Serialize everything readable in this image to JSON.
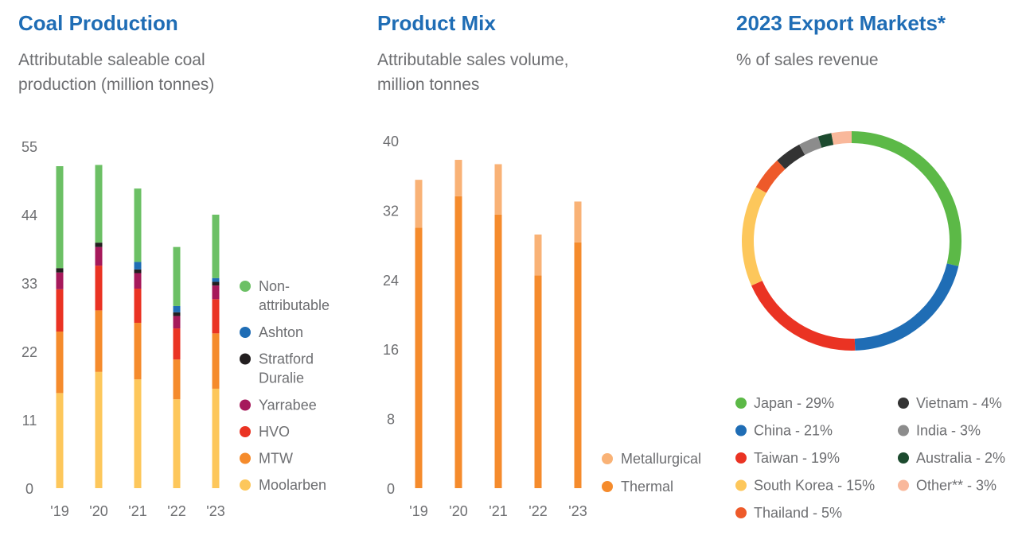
{
  "colors": {
    "title": "#1f6db5",
    "text": "#6d6e71"
  },
  "chart_data": [
    {
      "type": "bar",
      "stacked": true,
      "title": "Coal Production",
      "subtitle": [
        "Attributable saleable coal",
        "production (million tonnes)"
      ],
      "categories": [
        "'19",
        "'20",
        "'21",
        "'22",
        "'23"
      ],
      "yticks": [
        "55",
        "44",
        "33",
        "22",
        "11",
        "0"
      ],
      "ylim": [
        0,
        55
      ],
      "legend_position": "right",
      "series": [
        {
          "name": "Moolarben",
          "color": "#fdc75b",
          "values": [
            15.3,
            18.7,
            17.5,
            14.3,
            16.0
          ]
        },
        {
          "name": "MTW",
          "color": "#f58b2c",
          "values": [
            9.9,
            9.9,
            9.1,
            6.4,
            8.9
          ]
        },
        {
          "name": "HVO",
          "color": "#ea3323",
          "values": [
            6.8,
            7.2,
            5.5,
            5.0,
            5.5
          ]
        },
        {
          "name": "Yarrabee",
          "color": "#a6195b",
          "values": [
            2.7,
            3.0,
            2.5,
            2.0,
            2.2
          ]
        },
        {
          "name": "Stratford Duralie",
          "color": "#231f20",
          "values": [
            0.7,
            0.7,
            0.6,
            0.6,
            0.6
          ]
        },
        {
          "name": "Ashton",
          "color": "#1f6db5",
          "values": [
            0.0,
            0.0,
            1.2,
            1.0,
            0.6
          ]
        },
        {
          "name": "Non-attributable",
          "color": "#6cc065",
          "values": [
            16.4,
            12.5,
            11.8,
            9.5,
            10.2
          ]
        }
      ],
      "legend": [
        {
          "name": [
            "Non-",
            "attributable"
          ],
          "color": "#6cc065"
        },
        {
          "name": [
            "Ashton"
          ],
          "color": "#1f6db5"
        },
        {
          "name": [
            "Stratford",
            "Duralie"
          ],
          "color": "#231f20"
        },
        {
          "name": [
            "Yarrabee"
          ],
          "color": "#a6195b"
        },
        {
          "name": [
            "HVO"
          ],
          "color": "#ea3323"
        },
        {
          "name": [
            "MTW"
          ],
          "color": "#f58b2c"
        },
        {
          "name": [
            "Moolarben"
          ],
          "color": "#fdc75b"
        }
      ]
    },
    {
      "type": "bar",
      "stacked": true,
      "title": "Product Mix",
      "subtitle": [
        "Attributable sales volume,",
        "million tonnes"
      ],
      "categories": [
        "'19",
        "'20",
        "'21",
        "'22",
        "'23"
      ],
      "yticks": [
        "40",
        "32",
        "24",
        "16",
        "8",
        "0"
      ],
      "ylim": [
        0,
        40
      ],
      "legend_position": "right",
      "series": [
        {
          "name": "Thermal",
          "color": "#f58b2c",
          "values": [
            30.0,
            33.6,
            31.5,
            24.5,
            28.3
          ]
        },
        {
          "name": "Metallurgical",
          "color": "#f9b276",
          "values": [
            5.5,
            4.2,
            5.8,
            4.7,
            4.7
          ]
        }
      ],
      "legend": [
        {
          "name": [
            "Metallurgical"
          ],
          "color": "#f9b276"
        },
        {
          "name": [
            "Thermal"
          ],
          "color": "#f58b2c"
        }
      ]
    },
    {
      "type": "pie",
      "donut": true,
      "title": "2023 Export Markets*",
      "subtitle": [
        "% of sales revenue"
      ],
      "slices": [
        {
          "label": "Japan - 29%",
          "value": 29,
          "color": "#5cb947"
        },
        {
          "label": "China - 21%",
          "value": 21,
          "color": "#1f6db5"
        },
        {
          "label": "Taiwan - 19%",
          "value": 19,
          "color": "#ea3323"
        },
        {
          "label": "South Korea - 15%",
          "value": 15,
          "color": "#fdc75b"
        },
        {
          "label": "Thailand - 5%",
          "value": 5,
          "color": "#ee5a2a"
        },
        {
          "label": "Vietnam - 4%",
          "value": 4,
          "color": "#333333"
        },
        {
          "label": "India - 3%",
          "value": 3,
          "color": "#8c8c8c"
        },
        {
          "label": "Australia - 2%",
          "value": 2,
          "color": "#1c4a2e"
        },
        {
          "label": "Other** - 3%",
          "value": 3,
          "color": "#f9b89b"
        }
      ],
      "legend_columns": [
        [
          "Japan - 29%",
          "China - 21%",
          "Taiwan - 19%",
          "South Korea - 15%",
          "Thailand - 5%"
        ],
        [
          "Vietnam - 4%",
          "India - 3%",
          "Australia - 2%",
          "Other** - 3%"
        ]
      ],
      "legend_position": "bottom"
    }
  ]
}
